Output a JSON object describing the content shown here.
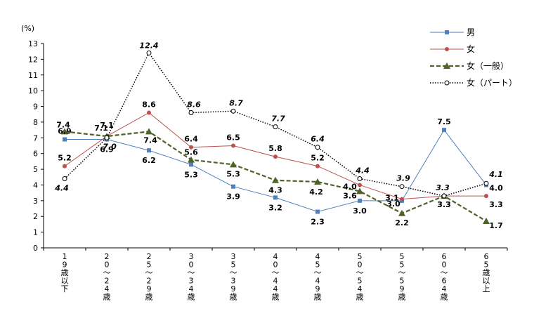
{
  "chart_data": {
    "type": "line",
    "unit_label": "(%)",
    "ylim": [
      0,
      13
    ],
    "yticks": [
      "0",
      "1",
      "2",
      "3",
      "4",
      "5",
      "6",
      "7",
      "8",
      "9",
      "10",
      "11",
      "12",
      "13"
    ],
    "categories": [
      "19歳以下",
      "20～24歳",
      "25～29歳",
      "30～34歳",
      "35～39歳",
      "40～44歳",
      "45～49歳",
      "50～54歳",
      "55～59歳",
      "60～64歳",
      "65歳以上"
    ],
    "series": [
      {
        "name": "男",
        "color": "#4f81bd",
        "marker": "square",
        "style": "solid",
        "values": [
          6.9,
          6.9,
          6.2,
          5.3,
          3.9,
          3.2,
          2.3,
          3.0,
          3.0,
          7.5,
          4.0
        ],
        "labels": [
          "6.9",
          "6.9",
          "6.2",
          "5.3",
          "3.9",
          "3.2",
          "2.3",
          "3.0",
          "3.0",
          "7.5",
          "4.0"
        ]
      },
      {
        "name": "女",
        "color": "#c0504d",
        "marker": "circle",
        "style": "solid",
        "values": [
          5.2,
          7.1,
          8.6,
          6.4,
          6.5,
          5.8,
          5.2,
          4.0,
          3.1,
          3.3,
          3.3
        ],
        "labels": [
          "5.2",
          "7.1",
          "8.6",
          "6.4",
          "6.5",
          "5.8",
          "5.2",
          "4.0",
          "3.1",
          "3.3",
          "3.3"
        ]
      },
      {
        "name": "女（一般）",
        "color": "#4f6228",
        "marker": "triangle",
        "style": "dashed",
        "values": [
          7.4,
          7.1,
          7.4,
          5.6,
          5.3,
          4.3,
          4.2,
          3.6,
          2.2,
          3.3,
          1.7
        ],
        "labels": [
          "7.4",
          "7.1",
          "7.4",
          "5.6",
          "5.3",
          "4.3",
          "4.2",
          "3.6",
          "2.2",
          "3.3",
          "1.7"
        ]
      },
      {
        "name": "女（パート）",
        "color": "#000000",
        "marker": "open-circle",
        "style": "dotted",
        "values": [
          4.4,
          7.0,
          12.4,
          8.6,
          8.7,
          7.7,
          6.4,
          4.4,
          3.9,
          3.3,
          4.1
        ],
        "labels": [
          "4.4",
          "7.0",
          "12.4",
          "8.6",
          "8.7",
          "7.7",
          "6.4",
          "4.4",
          "3.9",
          "3.3",
          "4.1"
        ]
      }
    ]
  }
}
